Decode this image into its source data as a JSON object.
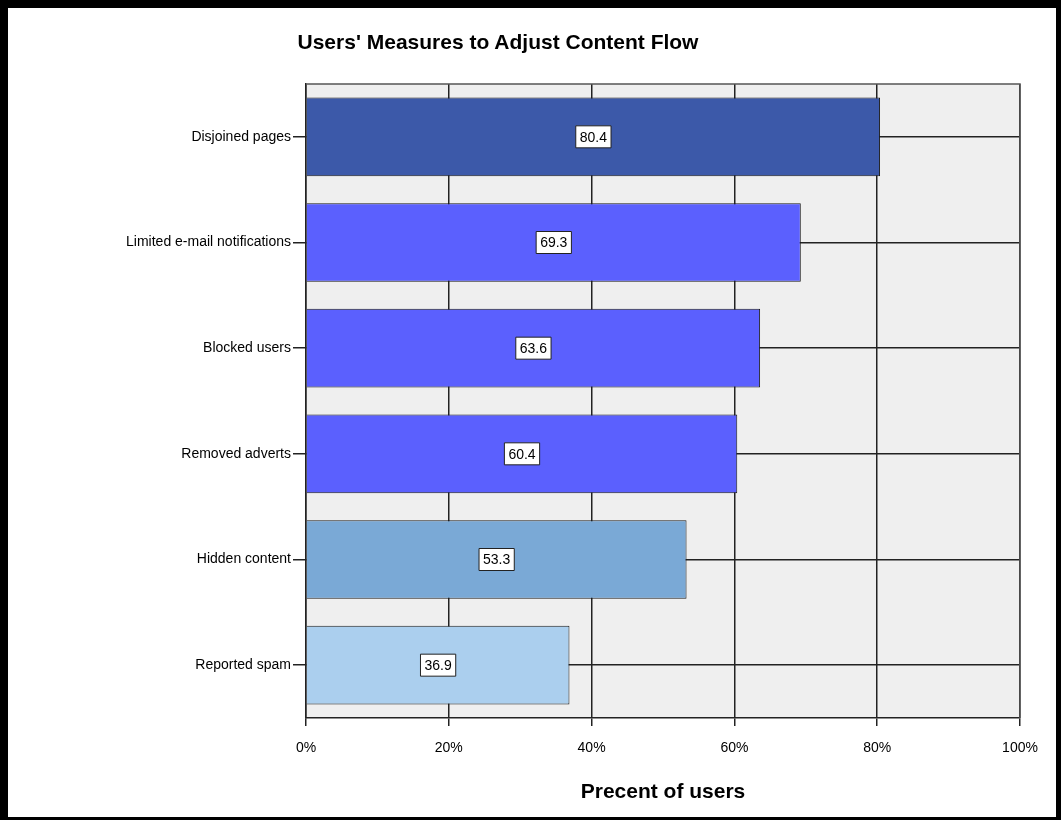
{
  "chart_data": {
    "type": "bar",
    "title": "Users' Measures to Adjust Content Flow",
    "xlabel": "Precent of users",
    "orientation": "horizontal",
    "categories": [
      "Disjoined pages",
      "Limited e-mail notifications",
      "Blocked users",
      "Removed adverts",
      "Hidden content",
      "Reported spam"
    ],
    "values": [
      80.4,
      69.3,
      63.6,
      60.4,
      53.3,
      36.9
    ],
    "colors": [
      "#3c59a9",
      "#5b60fe",
      "#5b60fe",
      "#5b60fe",
      "#7aa9d6",
      "#abcfee"
    ],
    "xlim": [
      0,
      100
    ],
    "xticks": [
      {
        "value": 0,
        "label": "0%"
      },
      {
        "value": 20,
        "label": "20%"
      },
      {
        "value": 40,
        "label": "40%"
      },
      {
        "value": 60,
        "label": "60%"
      },
      {
        "value": 80,
        "label": "80%"
      },
      {
        "value": 100,
        "label": "100%"
      }
    ],
    "grid": true,
    "data_labels": true
  }
}
